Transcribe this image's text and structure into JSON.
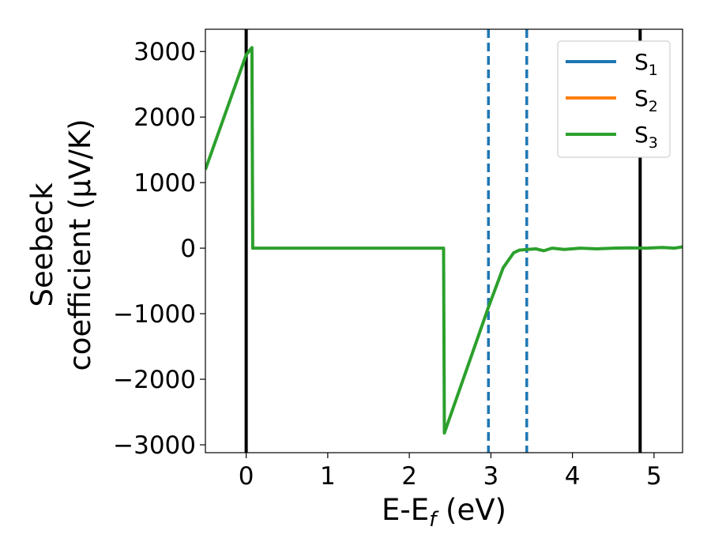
{
  "chart_data": {
    "type": "line",
    "xlabel": "E-E_f (eV)",
    "ylabel_line1": "Seebeck",
    "ylabel_line2": "coefficient  (μV/K)",
    "xlim": [
      -0.5,
      5.35
    ],
    "ylim": [
      -3120,
      3340
    ],
    "x_ticks": [
      0,
      1,
      2,
      3,
      4,
      5
    ],
    "x_tick_labels": [
      "0",
      "1",
      "2",
      "3",
      "4",
      "5"
    ],
    "y_ticks": [
      3000,
      2000,
      1000,
      0,
      -1000,
      -2000,
      -3000
    ],
    "y_tick_labels": [
      "3000",
      "2000",
      "1000",
      "0",
      "−1000",
      "−2000",
      "−3000"
    ],
    "grid": false,
    "legend_position": "top-right",
    "vertical_lines": [
      {
        "x": 0.0,
        "style": "solid",
        "color": "#000000"
      },
      {
        "x": 4.83,
        "style": "solid",
        "color": "#000000"
      },
      {
        "x": 2.97,
        "style": "dashed",
        "color": "#1f77b4"
      },
      {
        "x": 3.44,
        "style": "dashed",
        "color": "#1f77b4"
      }
    ],
    "series": [
      {
        "name": "S1",
        "name_main": "S",
        "name_sub": "1",
        "color": "#1f77b4",
        "visible_in_plot": false,
        "x": [
          -0.5,
          0.0,
          0.07,
          0.08,
          2.42,
          2.43,
          2.97,
          3.15,
          3.28,
          3.35,
          3.45,
          3.55,
          3.65,
          3.75,
          3.9,
          4.1,
          4.3,
          4.5,
          4.7,
          4.9,
          5.1,
          5.25,
          5.35
        ],
        "y": [
          1200,
          2950,
          3060,
          0,
          0,
          -2820,
          -900,
          -300,
          -70,
          -30,
          -20,
          -10,
          -40,
          0,
          -20,
          0,
          -10,
          0,
          5,
          0,
          10,
          0,
          20
        ]
      },
      {
        "name": "S2",
        "name_main": "S",
        "name_sub": "2",
        "color": "#ff7f0e",
        "visible_in_plot": false,
        "x": [
          -0.5,
          0.0,
          0.07,
          0.08,
          2.42,
          2.43,
          2.97,
          3.15,
          3.28,
          3.35,
          3.45,
          3.55,
          3.65,
          3.75,
          3.9,
          4.1,
          4.3,
          4.5,
          4.7,
          4.9,
          5.1,
          5.25,
          5.35
        ],
        "y": [
          1200,
          2950,
          3060,
          0,
          0,
          -2820,
          -900,
          -300,
          -70,
          -30,
          -20,
          -10,
          -40,
          0,
          -20,
          0,
          -10,
          0,
          5,
          0,
          10,
          0,
          20
        ]
      },
      {
        "name": "S3",
        "name_main": "S",
        "name_sub": "3",
        "color": "#2ca02c",
        "visible_in_plot": true,
        "x": [
          -0.5,
          0.0,
          0.07,
          0.08,
          2.42,
          2.43,
          2.97,
          3.15,
          3.28,
          3.35,
          3.45,
          3.55,
          3.65,
          3.75,
          3.9,
          4.1,
          4.3,
          4.5,
          4.7,
          4.9,
          5.1,
          5.25,
          5.35
        ],
        "y": [
          1200,
          2950,
          3060,
          0,
          0,
          -2820,
          -900,
          -300,
          -70,
          -30,
          -20,
          -10,
          -40,
          0,
          -20,
          0,
          -10,
          0,
          5,
          0,
          10,
          0,
          20
        ]
      }
    ]
  }
}
